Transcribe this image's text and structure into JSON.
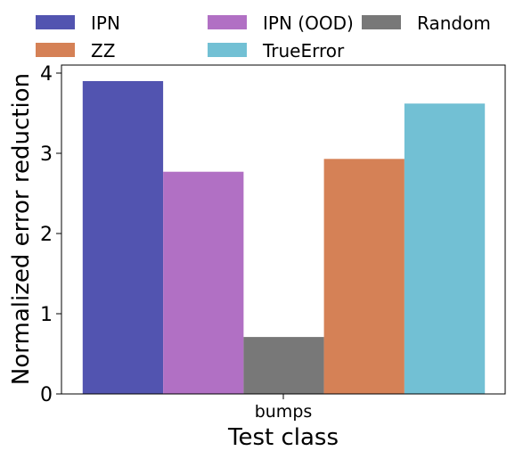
{
  "chart_data": {
    "type": "bar",
    "title": "",
    "xlabel": "Test class",
    "ylabel": "Normalized error reduction",
    "categories": [
      "bumps"
    ],
    "ylim": [
      0,
      4.1
    ],
    "yticks": [
      0,
      1,
      2,
      3,
      4
    ],
    "grid": false,
    "legend_position": "top",
    "series": [
      {
        "name": "IPN",
        "values": [
          3.9
        ],
        "color": "#5254b0"
      },
      {
        "name": "IPN (OOD)",
        "values": [
          2.77
        ],
        "color": "#b170c4"
      },
      {
        "name": "Random",
        "values": [
          0.71
        ],
        "color": "#787878"
      },
      {
        "name": "ZZ",
        "values": [
          2.93
        ],
        "color": "#d58156"
      },
      {
        "name": "TrueError",
        "values": [
          3.62
        ],
        "color": "#72c0d4"
      }
    ]
  }
}
